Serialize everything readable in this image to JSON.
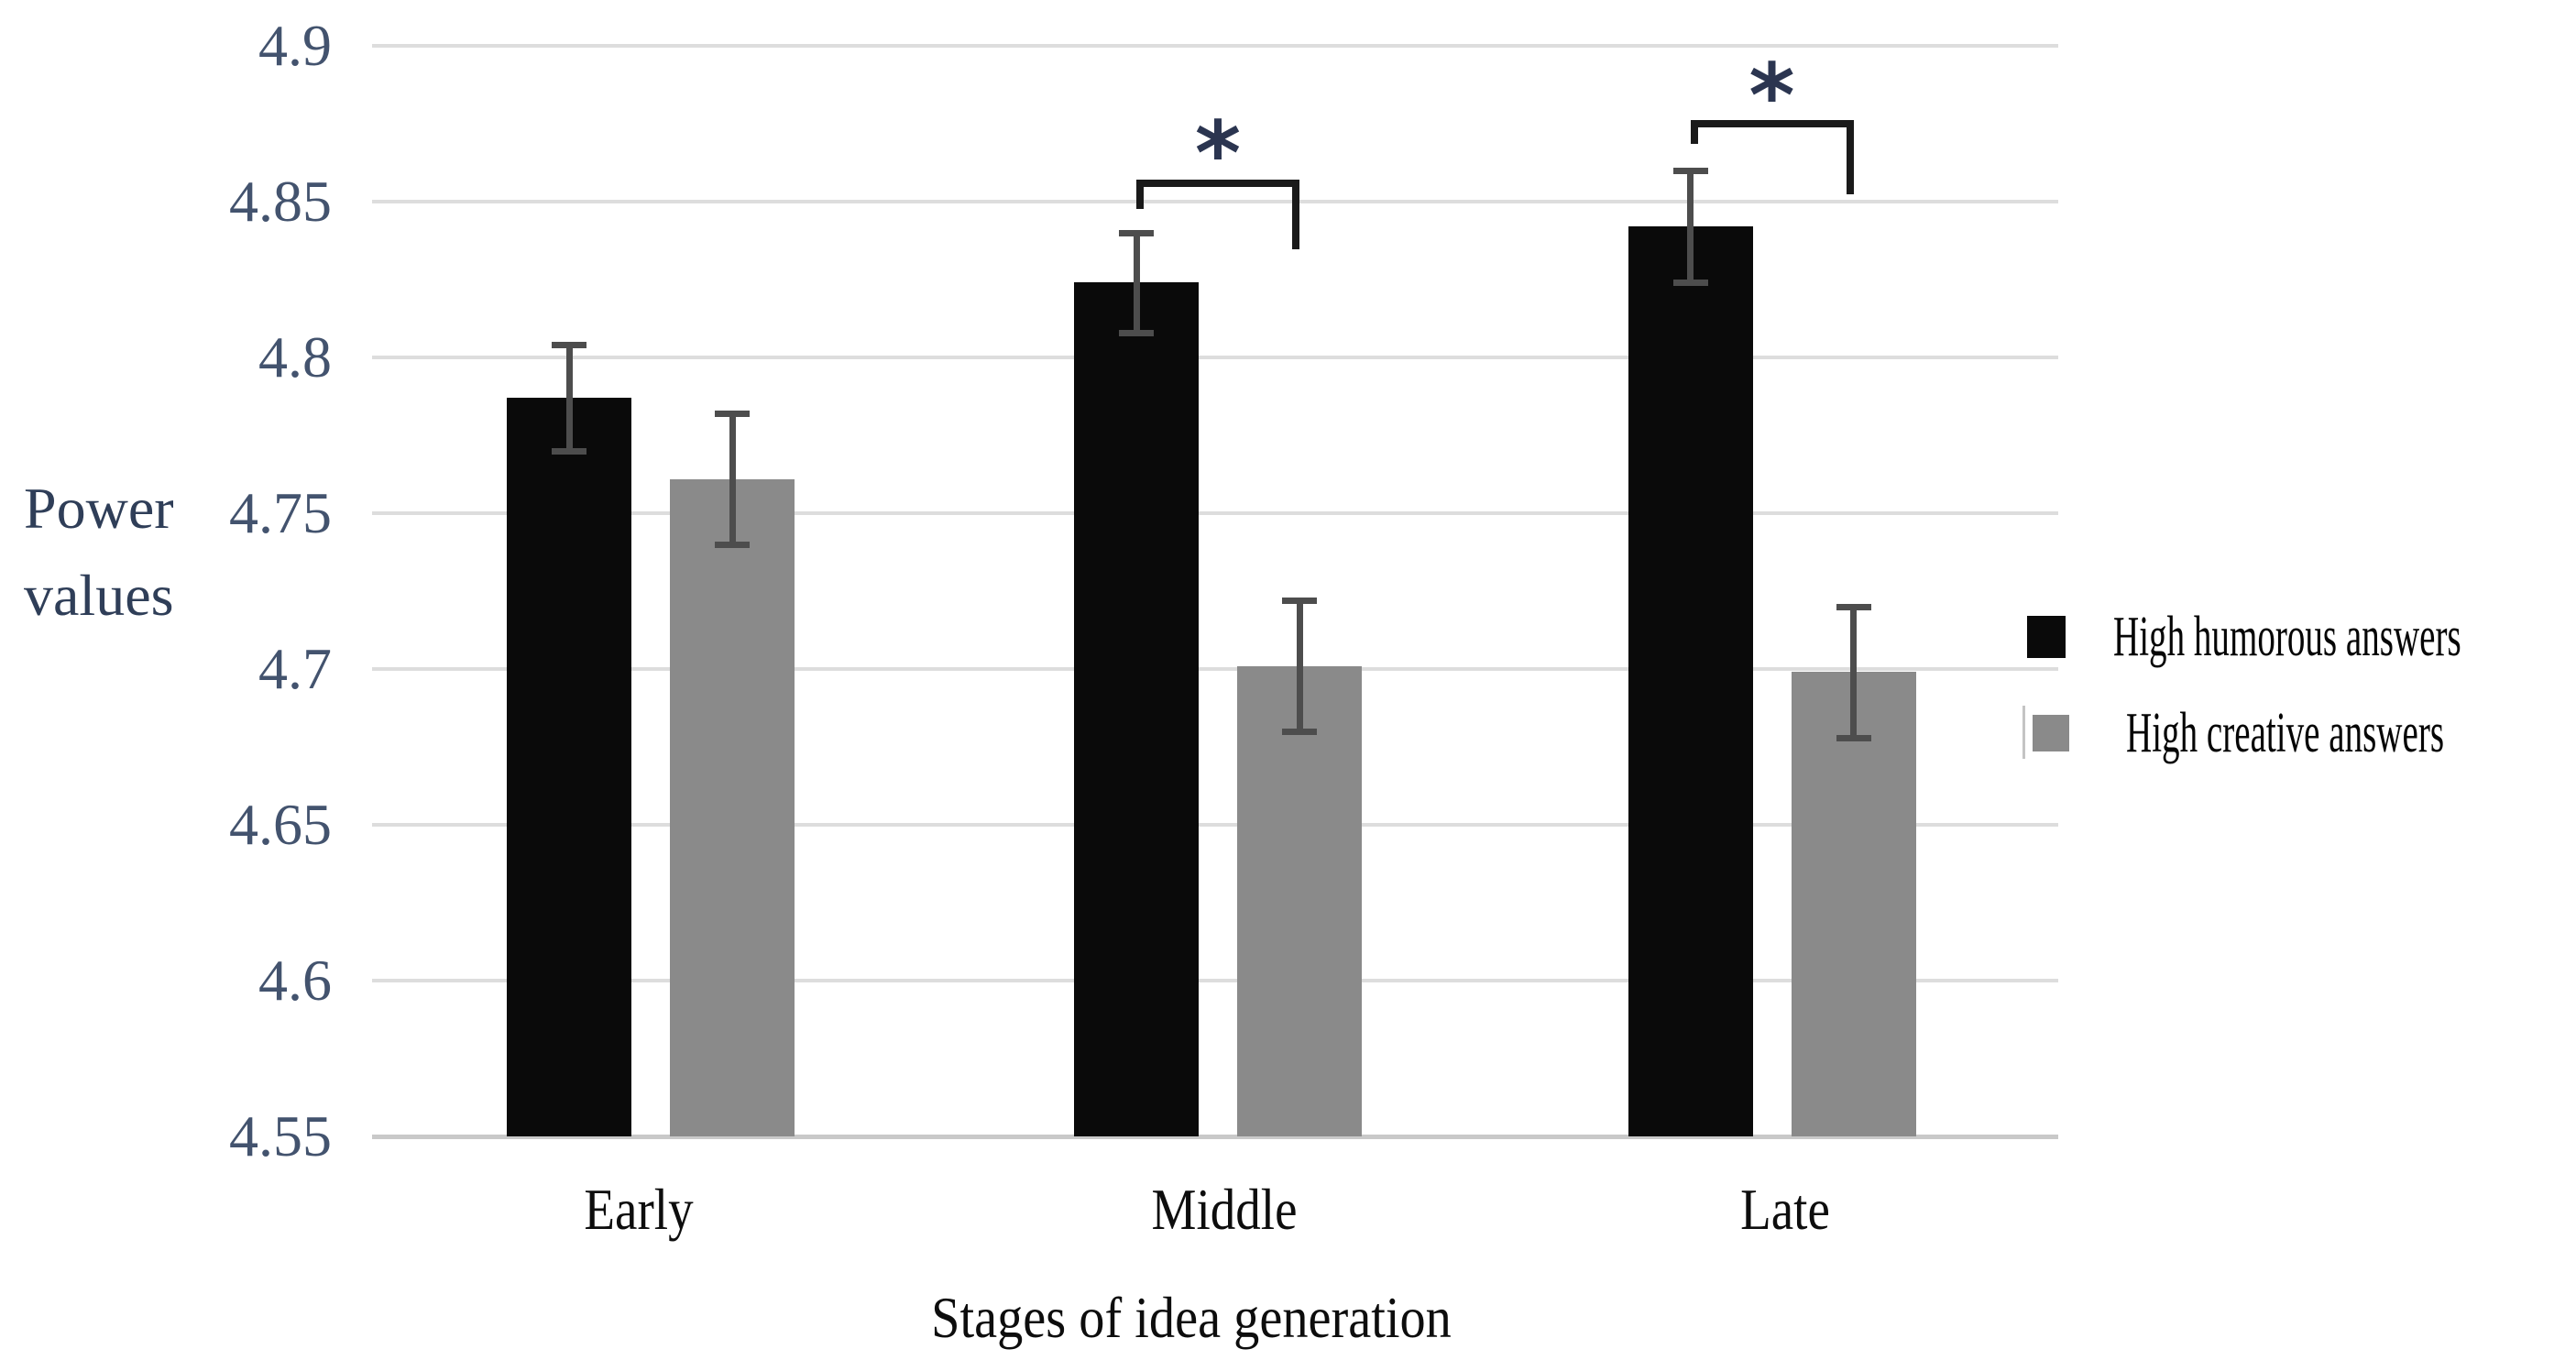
{
  "figure": {
    "background": "#ffffff",
    "gridline_color": "#dddddd",
    "baseline_color": "#c9c9c9",
    "error_bar_color": "#4d4d4d",
    "bracket_color": "#1a1a1a",
    "tick_label_color": "#43536e",
    "significance_star_color": "#2b3550"
  },
  "chart_data": {
    "type": "bar",
    "title": "",
    "xlabel": "Stages of idea generation",
    "ylabel": "Power values",
    "ylabel_lines": [
      "Power",
      "values"
    ],
    "categories": [
      "Early",
      "Middle",
      "Late"
    ],
    "series": [
      {
        "name": "High humorous answers",
        "color": "#0a0a0a",
        "values": [
          4.787,
          4.824,
          4.842
        ],
        "errors": [
          0.017,
          0.016,
          0.018
        ]
      },
      {
        "name": "High creative answers",
        "color": "#8a8a8a",
        "values": [
          4.761,
          4.701,
          4.699
        ],
        "errors": [
          0.021,
          0.021,
          0.021
        ]
      }
    ],
    "yticks": [
      "4.9",
      "4.85",
      "4.8",
      "4.75",
      "4.7",
      "4.65",
      "4.6",
      "4.55"
    ],
    "ylim": [
      4.55,
      4.9
    ],
    "grid": true,
    "legend_position": "right-outside",
    "error_bars": true,
    "significance": [
      {
        "category": "Middle",
        "label": "*"
      },
      {
        "category": "Late",
        "label": "*"
      }
    ]
  }
}
